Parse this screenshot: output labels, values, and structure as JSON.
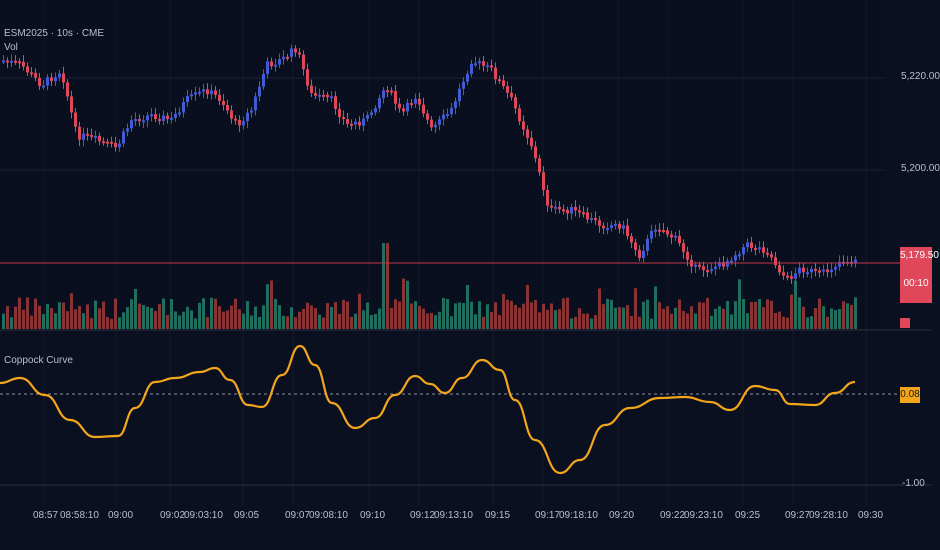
{
  "header": {
    "symbol_line": "ESM2025 · 10s · CME",
    "volume_label": "Vol"
  },
  "indicator": {
    "name": "Coppock Curve",
    "current_value": "0.08",
    "level_label": "-1.00"
  },
  "price_axis": {
    "labels": [
      "5,220.00",
      "5,200.00"
    ],
    "current_price": "5,179.50",
    "countdown": "00:10"
  },
  "time_axis": {
    "labels": [
      "08:57",
      "08:58:10",
      "09:00",
      "09:02",
      "09:03:10",
      "09:05",
      "09:07",
      "09:08:10",
      "09:10",
      "09:12",
      "09:13:10",
      "09:15",
      "09:17",
      "09:18:10",
      "09:20",
      "09:22",
      "09:23:10",
      "09:25",
      "09:27",
      "09:28:10",
      "09:30"
    ]
  },
  "colors": {
    "background": "#0b1020",
    "up_candle": "#3f5bd6",
    "down_candle": "#e0475b",
    "volume_up": "#1f6e5e",
    "volume_down": "#8a3334",
    "coppock_line": "#f3a51c",
    "price_tag": "#e0475b"
  }
}
